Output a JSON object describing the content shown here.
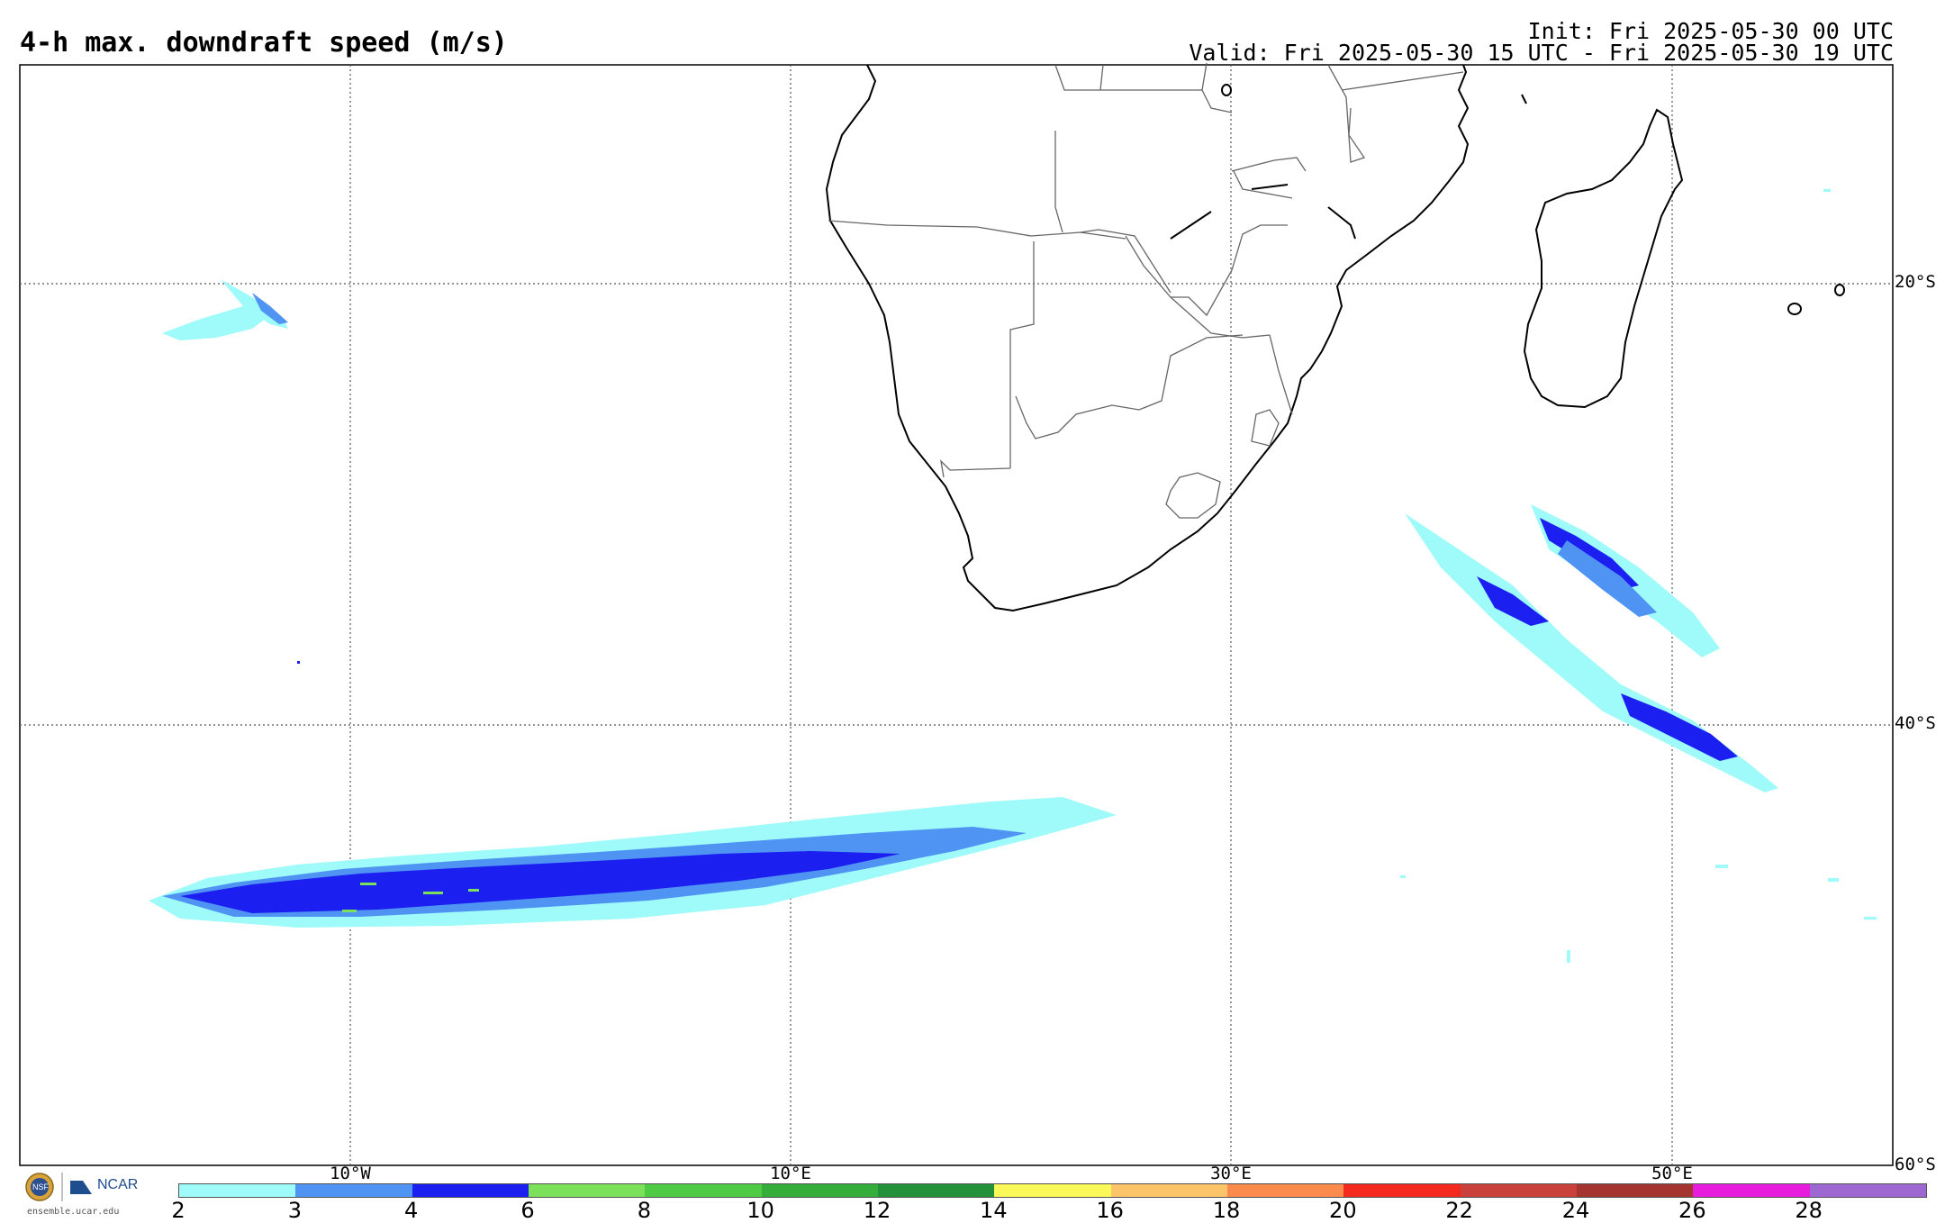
{
  "header": {
    "title": "4-h max. downdraft speed (m/s)",
    "init": "Init: Fri 2025-05-30 00 UTC",
    "valid": "Valid: Fri 2025-05-30 15 UTC - Fri 2025-05-30 19 UTC"
  },
  "axes": {
    "lat_labels": [
      "20°S",
      "40°S",
      "60°S"
    ],
    "lon_labels": [
      "10°W",
      "10°E",
      "30°E",
      "50°E"
    ]
  },
  "colorbar": {
    "ticks": [
      "2",
      "3",
      "4",
      "6",
      "8",
      "10",
      "12",
      "14",
      "16",
      "18",
      "20",
      "22",
      "24",
      "26",
      "28"
    ],
    "colors": [
      "#9ffafa",
      "#4f94f2",
      "#1b1ff0",
      "#7be05a",
      "#4fca45",
      "#35ad3a",
      "#22913a",
      "#fbf85a",
      "#fdc56a",
      "#fb8a4d",
      "#f52a1f",
      "#c9413a",
      "#a43430",
      "#e81cdc",
      "#9d68d1"
    ]
  },
  "branding": {
    "nsf": "NSF",
    "org": "NCAR",
    "url": "ensemble.ucar.edu"
  }
}
